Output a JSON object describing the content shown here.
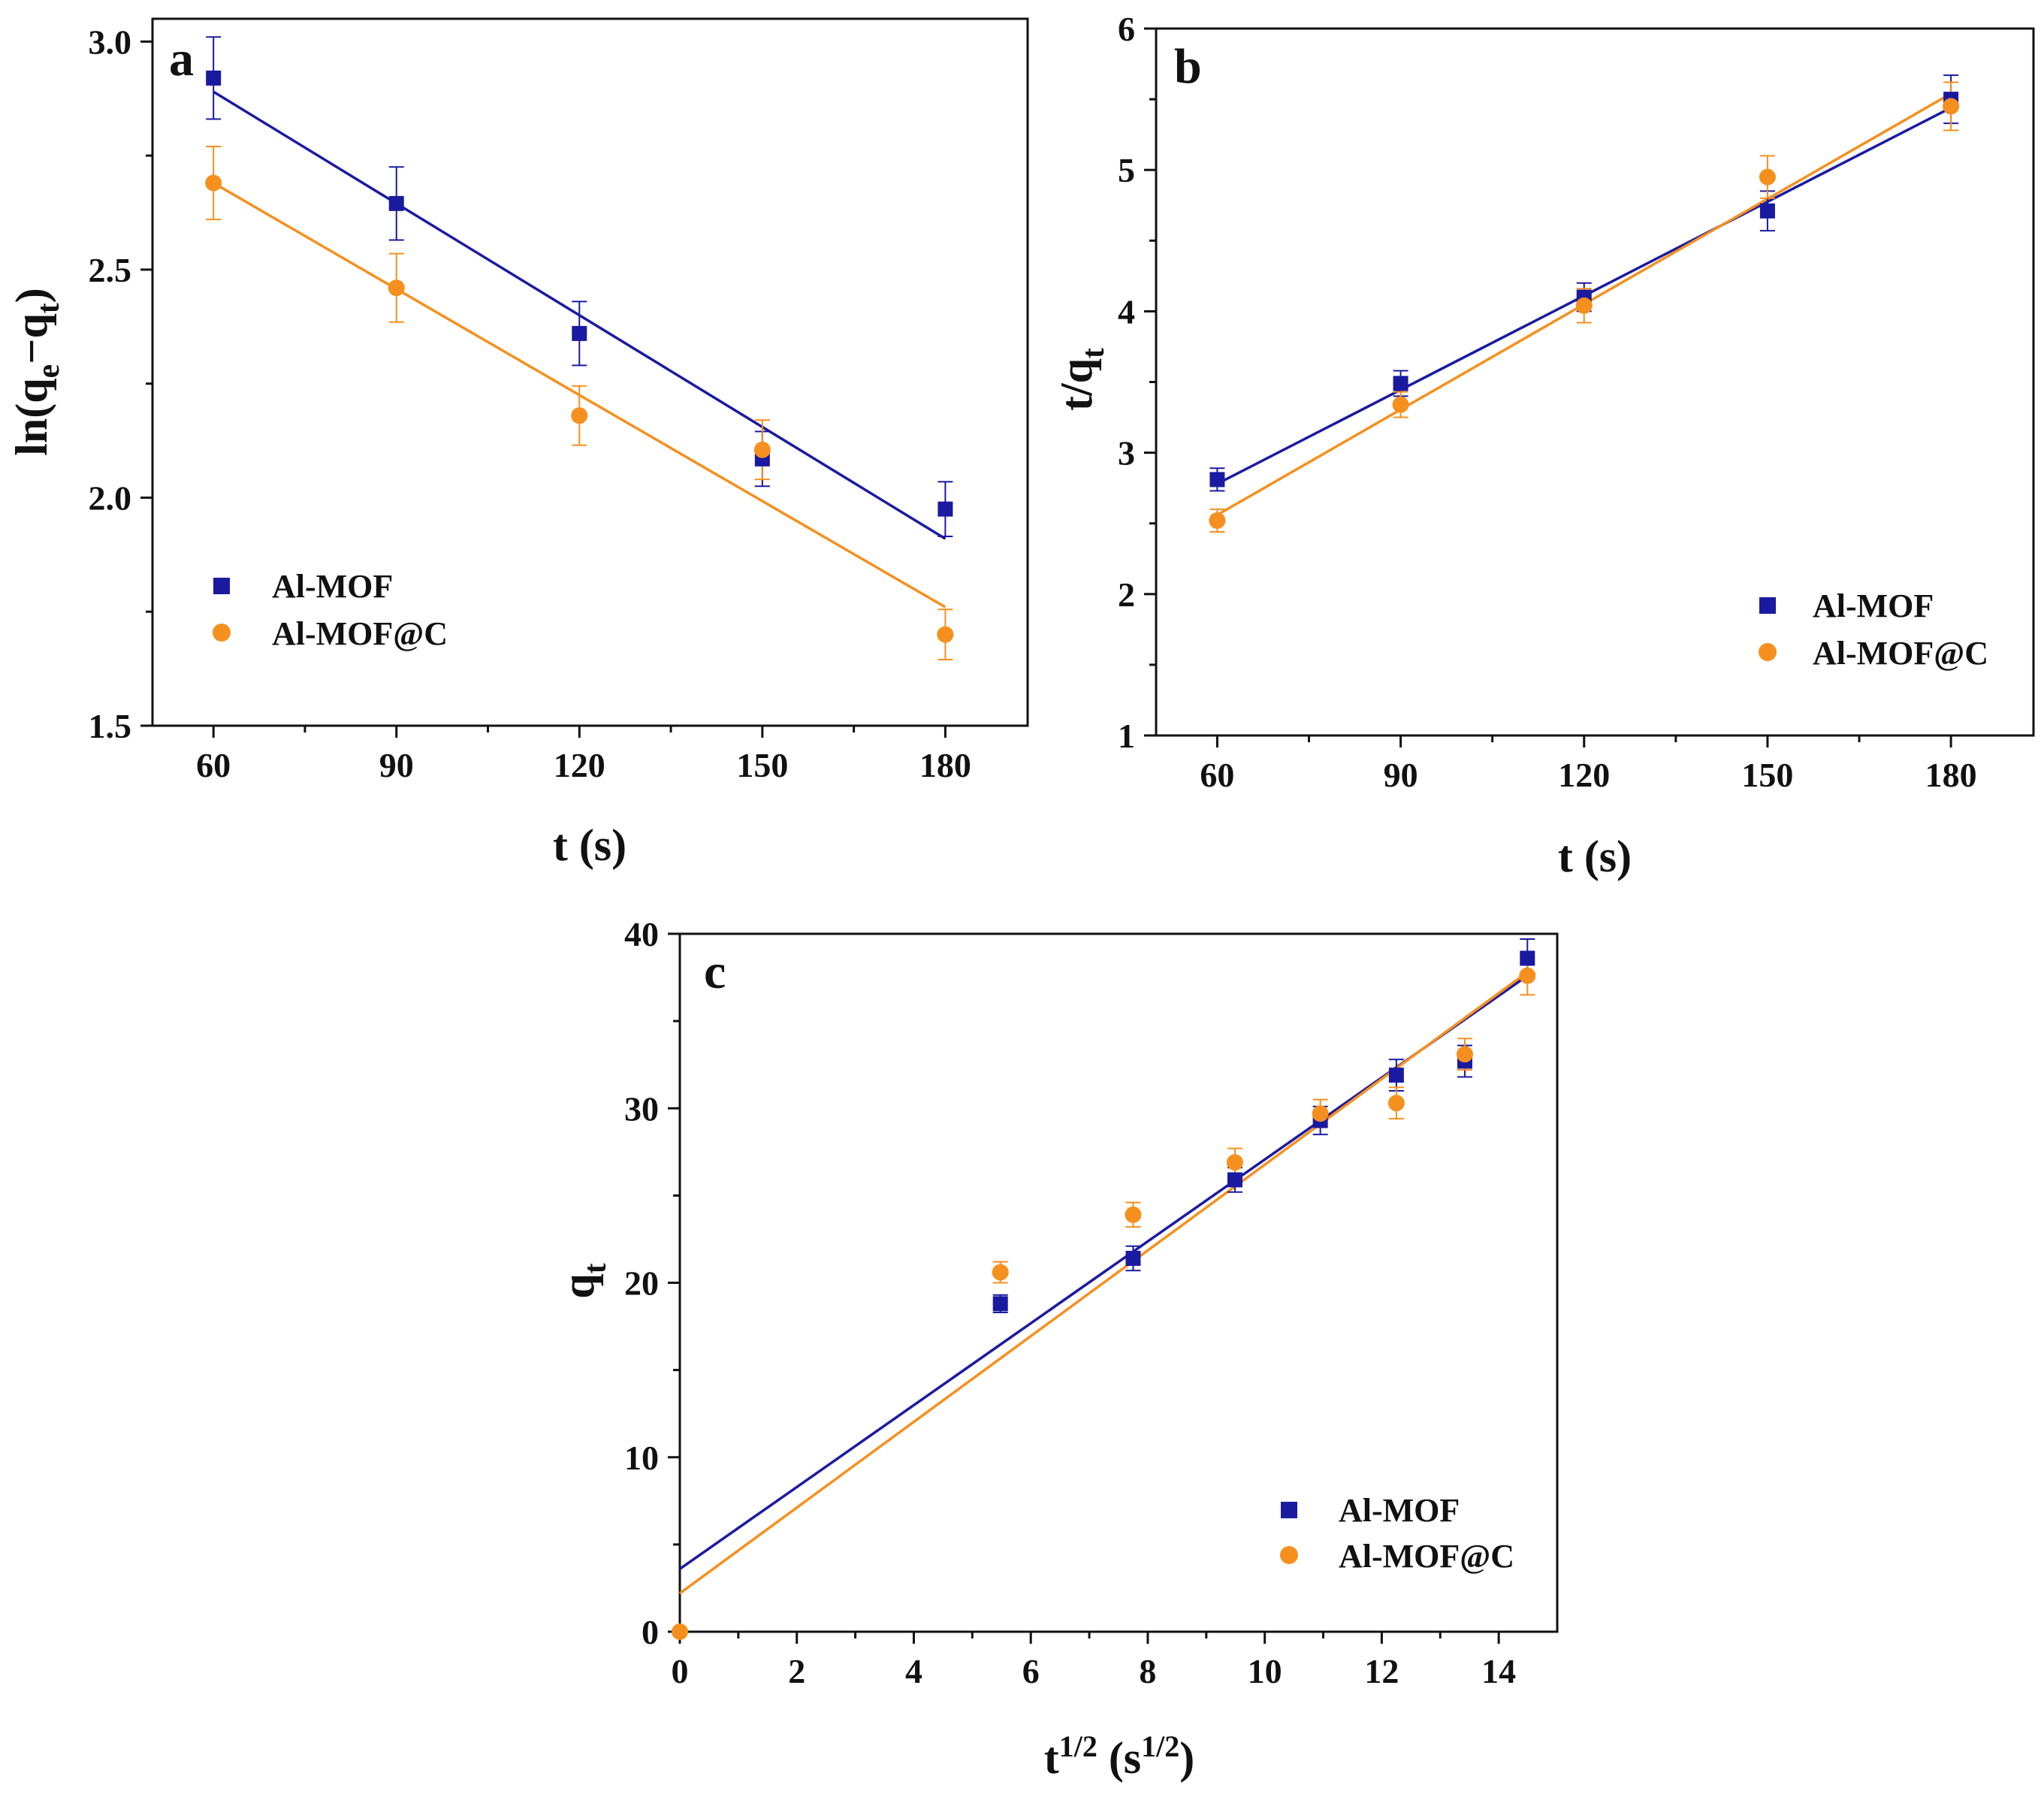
{
  "colors": {
    "al_mof": "#1a1aa0",
    "al_mof_c": "#f5901e",
    "axis": "#111111"
  },
  "legend": {
    "al_mof": "Al-MOF",
    "al_mof_c": "Al-MOF@C"
  },
  "chart_data": [
    {
      "id": "a",
      "panel_letter": "a",
      "type": "scatter",
      "xlabel": "t (s)",
      "ylabel_main": "ln(q",
      "ylabel_sub1": "e",
      "ylabel_mid": "−q",
      "ylabel_sub2": "t",
      "ylabel_end": ")",
      "xlim": [
        50,
        193.5
      ],
      "ylim": [
        1.5,
        3.05
      ],
      "xticks": [
        60,
        90,
        120,
        150,
        180
      ],
      "xtick_labels": [
        "60",
        "90",
        "120",
        "150",
        "180"
      ],
      "yticks": [
        1.5,
        2.0,
        2.5,
        3.0
      ],
      "ytick_labels": [
        "1.5",
        "2.0",
        "2.5",
        "3.0"
      ],
      "legend_position": "lower-left",
      "series": [
        {
          "name": "Al-MOF",
          "marker": "square",
          "color": "#1a1aa0",
          "x": [
            60,
            90,
            120,
            150,
            180
          ],
          "y": [
            2.92,
            2.645,
            2.36,
            2.085,
            1.975
          ],
          "err": [
            0.09,
            0.08,
            0.07,
            0.06,
            0.06
          ],
          "fit": {
            "x": [
              60,
              180
            ],
            "y": [
              2.89,
              1.91
            ]
          }
        },
        {
          "name": "Al-MOF@C",
          "marker": "circle",
          "color": "#f5901e",
          "x": [
            60,
            90,
            120,
            150,
            180
          ],
          "y": [
            2.69,
            2.46,
            2.18,
            2.105,
            1.7
          ],
          "err": [
            0.08,
            0.075,
            0.065,
            0.065,
            0.055
          ],
          "fit": {
            "x": [
              60,
              180
            ],
            "y": [
              2.69,
              1.76
            ]
          }
        }
      ]
    },
    {
      "id": "b",
      "panel_letter": "b",
      "type": "scatter",
      "xlabel": "t (s)",
      "ylabel_main": "t/q",
      "ylabel_sub1": "t",
      "ylabel_mid": "",
      "ylabel_sub2": "",
      "ylabel_end": "",
      "xlim": [
        50,
        193.5
      ],
      "ylim": [
        1,
        6
      ],
      "xticks": [
        60,
        90,
        120,
        150,
        180
      ],
      "xtick_labels": [
        "60",
        "90",
        "120",
        "150",
        "180"
      ],
      "yticks": [
        1,
        2,
        3,
        4,
        5,
        6
      ],
      "ytick_labels": [
        "1",
        "2",
        "3",
        "4",
        "5",
        "6"
      ],
      "legend_position": "lower-right",
      "series": [
        {
          "name": "Al-MOF",
          "marker": "square",
          "color": "#1a1aa0",
          "x": [
            60,
            90,
            120,
            150,
            180
          ],
          "y": [
            2.81,
            3.49,
            4.1,
            4.71,
            5.5
          ],
          "err": [
            0.08,
            0.09,
            0.1,
            0.14,
            0.17
          ],
          "fit": {
            "x": [
              60,
              180
            ],
            "y": [
              2.78,
              5.44
            ]
          }
        },
        {
          "name": "Al-MOF@C",
          "marker": "circle",
          "color": "#f5901e",
          "x": [
            60,
            90,
            120,
            150,
            180
          ],
          "y": [
            2.52,
            3.34,
            4.04,
            4.95,
            5.45
          ],
          "err": [
            0.08,
            0.09,
            0.12,
            0.15,
            0.17
          ],
          "fit": {
            "x": [
              60,
              180
            ],
            "y": [
              2.56,
              5.54
            ]
          }
        }
      ]
    },
    {
      "id": "c",
      "panel_letter": "c",
      "type": "scatter",
      "xlabel_main": "t",
      "xlabel_sup1": "1/2",
      "xlabel_mid": " (s",
      "xlabel_sup2": "1/2",
      "xlabel_end": ")",
      "ylabel_main": "q",
      "ylabel_sub1": "t",
      "ylabel_mid": "",
      "ylabel_sub2": "",
      "ylabel_end": "",
      "xlim": [
        0,
        15
      ],
      "ylim": [
        0,
        40
      ],
      "xticks": [
        0,
        2,
        4,
        6,
        8,
        10,
        12,
        14
      ],
      "xtick_labels": [
        "0",
        "2",
        "4",
        "6",
        "8",
        "10",
        "12",
        "14"
      ],
      "yticks": [
        0,
        10,
        20,
        30,
        40
      ],
      "ytick_labels": [
        "0",
        "10",
        "20",
        "30",
        "40"
      ],
      "legend_position": "lower-right",
      "series": [
        {
          "name": "Al-MOF",
          "marker": "square",
          "color": "#1a1aa0",
          "x": [
            5.48,
            7.75,
            9.49,
            10.95,
            12.25,
            13.42,
            14.49
          ],
          "y": [
            18.8,
            21.4,
            25.9,
            29.3,
            31.9,
            32.7,
            38.6
          ],
          "err": [
            0.5,
            0.7,
            0.7,
            0.8,
            0.9,
            0.9,
            1.1
          ],
          "fit": {
            "x": [
              0,
              14.49
            ],
            "y": [
              3.6,
              37.6
            ]
          }
        },
        {
          "name": "Al-MOF@C",
          "marker": "circle",
          "color": "#f5901e",
          "x": [
            0,
            5.48,
            7.75,
            9.49,
            10.95,
            12.25,
            13.42,
            14.49
          ],
          "y": [
            0,
            20.6,
            23.9,
            26.9,
            29.7,
            30.3,
            33.1,
            37.6
          ],
          "err": [
            0,
            0.6,
            0.7,
            0.8,
            0.8,
            0.9,
            0.9,
            1.1
          ],
          "fit": {
            "x": [
              0,
              14.49
            ],
            "y": [
              2.2,
              37.8
            ]
          }
        }
      ]
    }
  ]
}
